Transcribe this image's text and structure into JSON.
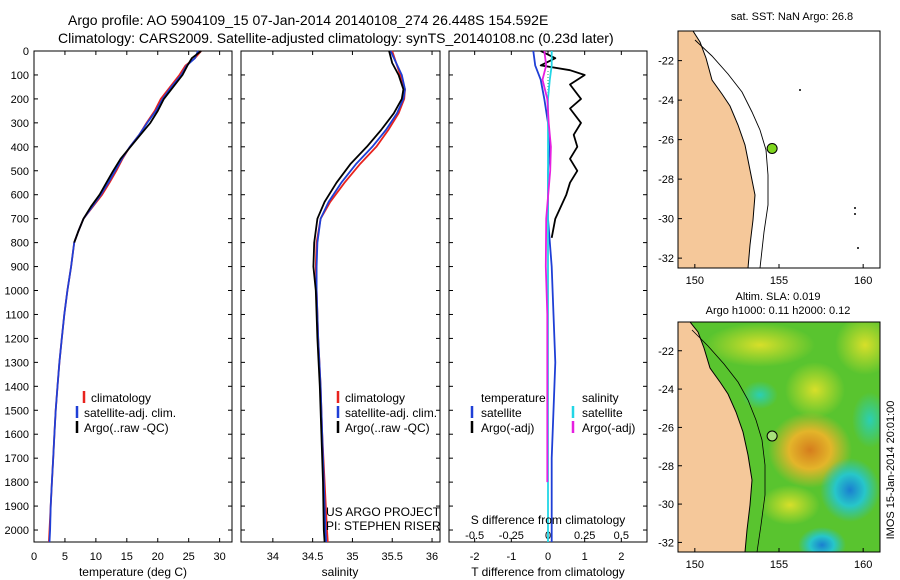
{
  "header": {
    "line1": "Argo profile: AO 5904109_15 07-Jan-2014 20140108_274 26.448S 154.592E",
    "line2": "Climatology: CARS2009. Satellite-adjusted climatology: synTS_20140108.nc (0.23d later)"
  },
  "colors": {
    "climatology": "#e8231e",
    "satellite_adj": "#1f3fd6",
    "argo": "#000000",
    "salinity_sat": "#22d6e6",
    "salinity_argo": "#e61fe0",
    "land": "#f5c89a"
  },
  "chart_data": [
    {
      "type": "line",
      "name": "temperature",
      "xlabel": "temperature (deg C)",
      "ylabel": "",
      "xlim": [
        0,
        32
      ],
      "ylim": [
        2050,
        0
      ],
      "xticks": [
        0,
        5,
        10,
        15,
        20,
        25,
        30
      ],
      "yticks": [
        0,
        100,
        200,
        300,
        400,
        500,
        600,
        700,
        800,
        900,
        1000,
        1100,
        1200,
        1300,
        1400,
        1500,
        1600,
        1700,
        1800,
        1900,
        2000
      ],
      "legend": [
        "climatology",
        "satellite-adj. clim.",
        "Argo(..raw -QC)"
      ],
      "series": [
        {
          "name": "climatology",
          "color": "#e8231e",
          "points": [
            [
              27,
              0
            ],
            [
              26,
              30
            ],
            [
              24.5,
              60
            ],
            [
              23.5,
              100
            ],
            [
              22,
              150
            ],
            [
              20.5,
              200
            ],
            [
              19.5,
              250
            ],
            [
              18.2,
              300
            ],
            [
              17,
              350
            ],
            [
              15.5,
              400
            ],
            [
              14.3,
              450
            ],
            [
              13.3,
              500
            ],
            [
              12.2,
              550
            ],
            [
              11,
              600
            ],
            [
              9.5,
              650
            ],
            [
              8,
              700
            ],
            [
              7.2,
              750
            ],
            [
              6.5,
              800
            ],
            [
              6,
              900
            ],
            [
              5.4,
              1000
            ],
            [
              4.9,
              1100
            ],
            [
              4.5,
              1200
            ],
            [
              4.1,
              1300
            ],
            [
              3.8,
              1400
            ],
            [
              3.5,
              1500
            ],
            [
              3.3,
              1600
            ],
            [
              3.1,
              1700
            ],
            [
              2.9,
              1800
            ],
            [
              2.7,
              1900
            ],
            [
              2.5,
              2000
            ],
            [
              2.4,
              2050
            ]
          ]
        },
        {
          "name": "satellite-adj. clim.",
          "color": "#1f3fd6",
          "points": [
            [
              26.5,
              0
            ],
            [
              26,
              30
            ],
            [
              24.7,
              60
            ],
            [
              23.8,
              100
            ],
            [
              22.2,
              150
            ],
            [
              20.8,
              200
            ],
            [
              19.7,
              250
            ],
            [
              18.3,
              300
            ],
            [
              17,
              350
            ],
            [
              15.5,
              400
            ],
            [
              14.2,
              450
            ],
            [
              13.1,
              500
            ],
            [
              12,
              550
            ],
            [
              10.8,
              600
            ],
            [
              9.4,
              650
            ],
            [
              8,
              700
            ],
            [
              7.2,
              750
            ],
            [
              6.5,
              800
            ],
            [
              6,
              900
            ],
            [
              5.4,
              1000
            ],
            [
              4.9,
              1100
            ],
            [
              4.5,
              1200
            ],
            [
              4.1,
              1300
            ],
            [
              3.8,
              1400
            ],
            [
              3.5,
              1500
            ],
            [
              3.3,
              1600
            ],
            [
              3.1,
              1700
            ],
            [
              2.9,
              1800
            ],
            [
              2.7,
              1900
            ],
            [
              2.6,
              2000
            ],
            [
              2.5,
              2050
            ]
          ]
        },
        {
          "name": "Argo(..raw -QC)",
          "color": "#000000",
          "points": [
            [
              27,
              0
            ],
            [
              25.5,
              30
            ],
            [
              24.8,
              60
            ],
            [
              24,
              100
            ],
            [
              22.5,
              150
            ],
            [
              21,
              200
            ],
            [
              20,
              250
            ],
            [
              18.8,
              300
            ],
            [
              17.2,
              350
            ],
            [
              15.6,
              400
            ],
            [
              14,
              450
            ],
            [
              12.8,
              500
            ],
            [
              11.7,
              550
            ],
            [
              10.6,
              600
            ],
            [
              9.2,
              650
            ],
            [
              8,
              700
            ],
            [
              7.2,
              750
            ],
            [
              6.5,
              800
            ]
          ]
        }
      ]
    },
    {
      "type": "line",
      "name": "salinity",
      "xlabel": "salinity",
      "xlim": [
        33.6,
        36.1
      ],
      "ylim": [
        2050,
        0
      ],
      "xticks": [
        34,
        34.5,
        35,
        35.5,
        36
      ],
      "legend": [
        "climatology",
        "satellite-adj. clim.",
        "Argo(..raw -QC)"
      ],
      "annotations": [
        "US ARGO PROJECT",
        "PI: STEPHEN RISER"
      ],
      "series": [
        {
          "name": "climatology",
          "color": "#e8231e",
          "points": [
            [
              35.5,
              0
            ],
            [
              35.55,
              50
            ],
            [
              35.6,
              100
            ],
            [
              35.66,
              160
            ],
            [
              35.65,
              200
            ],
            [
              35.58,
              260
            ],
            [
              35.45,
              330
            ],
            [
              35.3,
              400
            ],
            [
              35.1,
              470
            ],
            [
              34.9,
              550
            ],
            [
              34.72,
              630
            ],
            [
              34.6,
              700
            ],
            [
              34.55,
              800
            ],
            [
              34.54,
              900
            ],
            [
              34.55,
              1000
            ],
            [
              34.57,
              1200
            ],
            [
              34.6,
              1400
            ],
            [
              34.62,
              1600
            ],
            [
              34.65,
              1800
            ],
            [
              34.68,
              2000
            ],
            [
              34.69,
              2050
            ]
          ]
        },
        {
          "name": "satellite-adj. clim.",
          "color": "#1f3fd6",
          "points": [
            [
              35.48,
              0
            ],
            [
              35.55,
              50
            ],
            [
              35.62,
              100
            ],
            [
              35.66,
              160
            ],
            [
              35.64,
              200
            ],
            [
              35.56,
              260
            ],
            [
              35.42,
              330
            ],
            [
              35.25,
              400
            ],
            [
              35.05,
              470
            ],
            [
              34.86,
              550
            ],
            [
              34.7,
              630
            ],
            [
              34.6,
              700
            ],
            [
              34.56,
              800
            ],
            [
              34.55,
              900
            ],
            [
              34.55,
              1000
            ],
            [
              34.57,
              1200
            ],
            [
              34.6,
              1400
            ],
            [
              34.62,
              1600
            ],
            [
              34.64,
              1800
            ],
            [
              34.66,
              2000
            ],
            [
              34.67,
              2050
            ]
          ]
        },
        {
          "name": "Argo(..raw -QC)",
          "color": "#000000",
          "points": [
            [
              35.46,
              0
            ],
            [
              35.5,
              50
            ],
            [
              35.58,
              100
            ],
            [
              35.64,
              160
            ],
            [
              35.62,
              200
            ],
            [
              35.52,
              260
            ],
            [
              35.36,
              330
            ],
            [
              35.18,
              400
            ],
            [
              34.98,
              470
            ],
            [
              34.8,
              550
            ],
            [
              34.65,
              630
            ],
            [
              34.56,
              700
            ],
            [
              34.52,
              800
            ],
            [
              34.51,
              900
            ],
            [
              34.54,
              1000
            ],
            [
              34.56,
              1200
            ],
            [
              34.59,
              1400
            ],
            [
              34.61,
              1600
            ],
            [
              34.63,
              1800
            ],
            [
              34.64,
              2000
            ],
            [
              34.65,
              2050
            ]
          ]
        }
      ]
    },
    {
      "type": "line",
      "name": "difference",
      "xlabel": "T difference from climatology",
      "xlabel_top": "S difference from climatology",
      "xlim": [
        -2.7,
        2.7
      ],
      "ylim": [
        2050,
        0
      ],
      "xticks": [
        -2,
        -1,
        0,
        1,
        2
      ],
      "xticks_top": [
        -0.5,
        -0.25,
        0,
        0.25,
        0.5
      ],
      "legend_headers": [
        "temperature",
        "salinity"
      ],
      "legend": [
        "satellite",
        "Argo(-adj)",
        "satellite",
        "Argo(-adj)"
      ],
      "series": [
        {
          "name": "T satellite",
          "color": "#1f3fd6",
          "points": [
            [
              -0.4,
              0
            ],
            [
              -0.35,
              60
            ],
            [
              -0.2,
              120
            ],
            [
              -0.1,
              200
            ],
            [
              0,
              300
            ],
            [
              0.05,
              400
            ],
            [
              0,
              500
            ],
            [
              0,
              700
            ],
            [
              0.1,
              900
            ],
            [
              0.15,
              1100
            ],
            [
              0.2,
              1300
            ],
            [
              0.15,
              1500
            ],
            [
              0.1,
              1700
            ],
            [
              0.1,
              1900
            ],
            [
              0.1,
              2050
            ]
          ]
        },
        {
          "name": "T Argo(-adj)",
          "color": "#000000",
          "points": [
            [
              -0.2,
              0
            ],
            [
              0.2,
              30
            ],
            [
              -0.2,
              60
            ],
            [
              0.6,
              80
            ],
            [
              1.0,
              100
            ],
            [
              0.6,
              140
            ],
            [
              0.9,
              200
            ],
            [
              0.6,
              240
            ],
            [
              0.9,
              300
            ],
            [
              0.7,
              350
            ],
            [
              0.8,
              400
            ],
            [
              0.6,
              450
            ],
            [
              0.8,
              500
            ],
            [
              0.6,
              550
            ],
            [
              0.5,
              600
            ],
            [
              0.35,
              650
            ],
            [
              0.2,
              700
            ],
            [
              0.1,
              780
            ]
          ]
        },
        {
          "name": "S satellite",
          "color": "#22d6e6",
          "points": [
            [
              0.1,
              0
            ],
            [
              0.1,
              60
            ],
            [
              0.05,
              120
            ],
            [
              0,
              200
            ],
            [
              0,
              400
            ],
            [
              0,
              700
            ],
            [
              0,
              1000
            ],
            [
              0,
              1400
            ],
            [
              0,
              1800
            ],
            [
              0,
              2050
            ]
          ]
        },
        {
          "name": "S Argo(-adj)",
          "color": "#e61fe0",
          "points": [
            [
              -0.1,
              0
            ],
            [
              -0.05,
              60
            ],
            [
              -0.15,
              120
            ],
            [
              -0.02,
              200
            ],
            [
              0.02,
              300
            ],
            [
              0.08,
              400
            ],
            [
              0.06,
              500
            ],
            [
              -0.05,
              700
            ],
            [
              -0.06,
              900
            ],
            [
              -0.02,
              1100
            ],
            [
              -0.02,
              1400
            ],
            [
              -0.02,
              1700
            ],
            [
              -0.02,
              1800
            ]
          ]
        }
      ]
    },
    {
      "type": "map",
      "name": "sst-map",
      "title": "sat. SST: NaN Argo: 26.8",
      "xlim": [
        149,
        161
      ],
      "ylim": [
        -32.5,
        -20.5
      ],
      "xticks": [
        150,
        155,
        160
      ],
      "yticks": [
        -22,
        -24,
        -26,
        -28,
        -30,
        -32
      ],
      "argo_position": [
        154.592,
        -26.448
      ]
    },
    {
      "type": "map",
      "name": "sla-map",
      "title": "Altim. SLA: 0.019",
      "subtitle": "Argo h1000: 0.11 h2000: 0.12",
      "side_label": "IMOS 15-Jan-2014 20:01:00",
      "xlim": [
        149,
        161
      ],
      "ylim": [
        -32.5,
        -20.5
      ],
      "xticks": [
        150,
        155,
        160
      ],
      "yticks": [
        -22,
        -24,
        -26,
        -28,
        -30,
        -32
      ],
      "argo_position": [
        154.592,
        -26.448
      ]
    }
  ]
}
